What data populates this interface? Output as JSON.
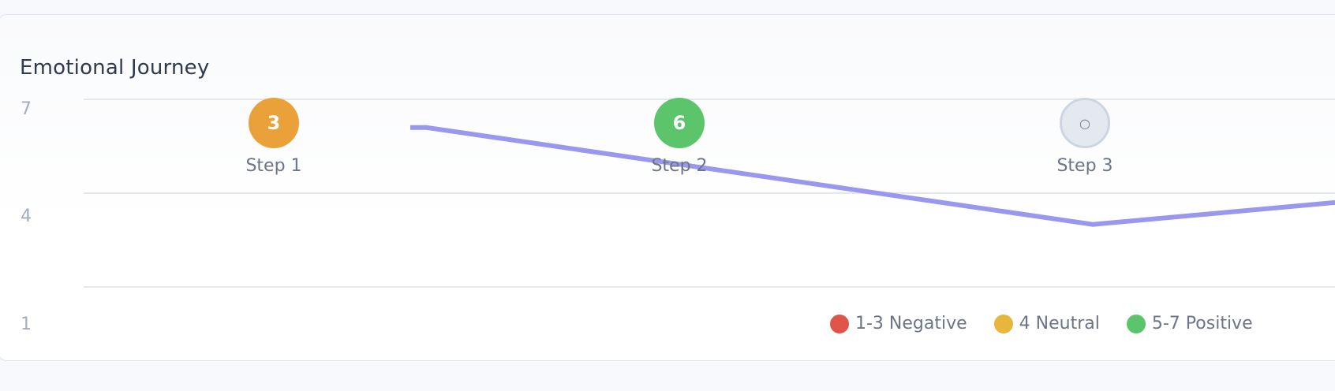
{
  "chart_data": {
    "type": "line",
    "title": "Emotional Journey",
    "y_ticks": [
      "7",
      "4",
      "1"
    ],
    "ylim": [
      1,
      7
    ],
    "grid": true,
    "steps": [
      {
        "label": "Step 1",
        "score": "3",
        "status": "neutral"
      },
      {
        "label": "Step 2",
        "score": "6",
        "status": "positive"
      },
      {
        "label": "Step 3",
        "score": "○",
        "status": "pending"
      }
    ],
    "series": [
      {
        "values": [
          6.1,
          3.0,
          3.7
        ],
        "color": "#9a98ee"
      }
    ],
    "legend": [
      {
        "label": "1-3 Negative",
        "color": "#e0544a"
      },
      {
        "label": "4 Neutral",
        "color": "#e8b63c"
      },
      {
        "label": "5-7 Positive",
        "color": "#5cc46a"
      }
    ],
    "legend_position": "bottom-right"
  },
  "colors": {
    "neutral": "#eba13a",
    "positive": "#5cc46a",
    "pending": "#e4e9f0"
  }
}
